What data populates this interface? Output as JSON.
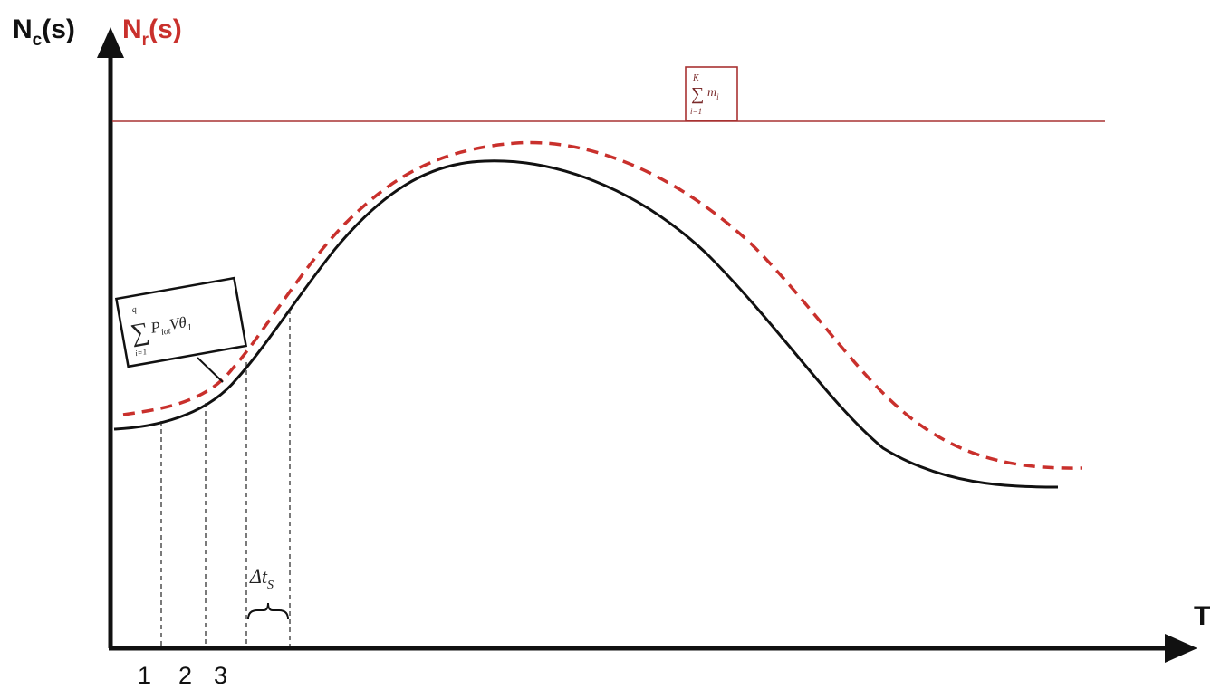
{
  "y_label": {
    "n_c_base": "N",
    "n_c_sub": "c",
    "n_c_suffix": "(s)",
    "n_r_base": "N",
    "n_r_sub": "r",
    "n_r_suffix": "(s)"
  },
  "x_label": "T",
  "tick_labels": [
    "1",
    "2",
    "3"
  ],
  "formula_capacity": {
    "sum_top": "K",
    "sum_symbol": "∑",
    "sum_bottom": "i=1",
    "term": "m",
    "term_sub": "i"
  },
  "formula_demand": {
    "sum_top": "q",
    "sum_symbol": "∑",
    "sum_bottom": "i=1",
    "term": "P",
    "term_sub": "iot",
    "term2": "Vθ",
    "term2_sub": "1"
  },
  "interval_label": {
    "base": "Δt",
    "sub": "S"
  },
  "colors": {
    "axis": "#111111",
    "solid_curve": "#111111",
    "dashed_curve": "#c9302c",
    "capacity_line": "#a83232",
    "red_label": "#c9302c"
  }
}
